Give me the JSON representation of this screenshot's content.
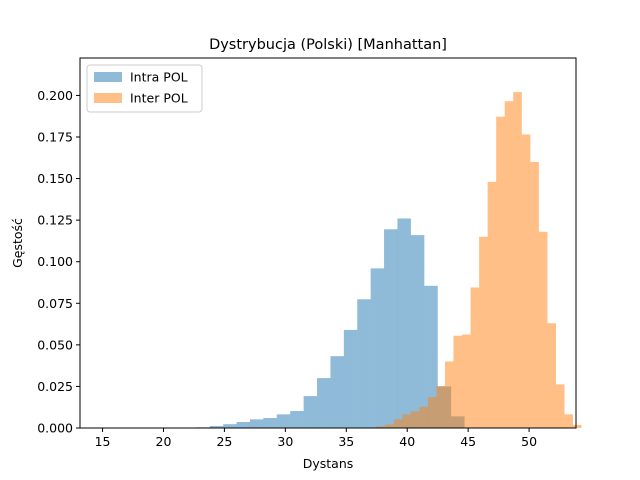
{
  "chart_data": {
    "type": "bar",
    "title": "Dystrybucja (Polski) [Manhattan]",
    "xlabel": "Dystans",
    "ylabel": "Gęstość",
    "xlim": [
      13.15,
      53.85
    ],
    "ylim": [
      0,
      0.2225
    ],
    "xticks": [
      15,
      20,
      25,
      30,
      35,
      40,
      45,
      50
    ],
    "yticks": [
      0.0,
      0.025,
      0.05,
      0.075,
      0.1,
      0.125,
      0.15,
      0.175,
      0.2
    ],
    "ytick_labels": [
      "0.000",
      "0.025",
      "0.050",
      "0.075",
      "0.100",
      "0.125",
      "0.150",
      "0.175",
      "0.200"
    ],
    "grid": false,
    "legend_position": "upper-left",
    "series": [
      {
        "name": "Intra POL",
        "color": "#1f77b4",
        "opacity": 0.5,
        "bin_start": 15.0,
        "bin_width": 1.1,
        "values": [
          0.0001,
          0.0001,
          0.0001,
          0.0001,
          0.0001,
          0.0001,
          0.0001,
          0.0004,
          0.0012,
          0.0023,
          0.0036,
          0.0052,
          0.006,
          0.0082,
          0.0102,
          0.0192,
          0.03,
          0.0432,
          0.059,
          0.0774,
          0.096,
          0.1195,
          0.126,
          0.116,
          0.0855,
          0.025,
          0.007
        ]
      },
      {
        "name": "Inter POL",
        "color": "#ff7f0e",
        "opacity": 0.5,
        "bin_start": 37.5,
        "bin_width": 0.7,
        "values": [
          0.001,
          0.0021,
          0.0052,
          0.0082,
          0.01,
          0.0128,
          0.0186,
          0.0252,
          0.04,
          0.0555,
          0.0562,
          0.0845,
          0.115,
          0.148,
          0.1872,
          0.1965,
          0.202,
          0.1765,
          0.16,
          0.118,
          0.063,
          0.0262,
          0.0082,
          0.0018
        ]
      }
    ]
  }
}
